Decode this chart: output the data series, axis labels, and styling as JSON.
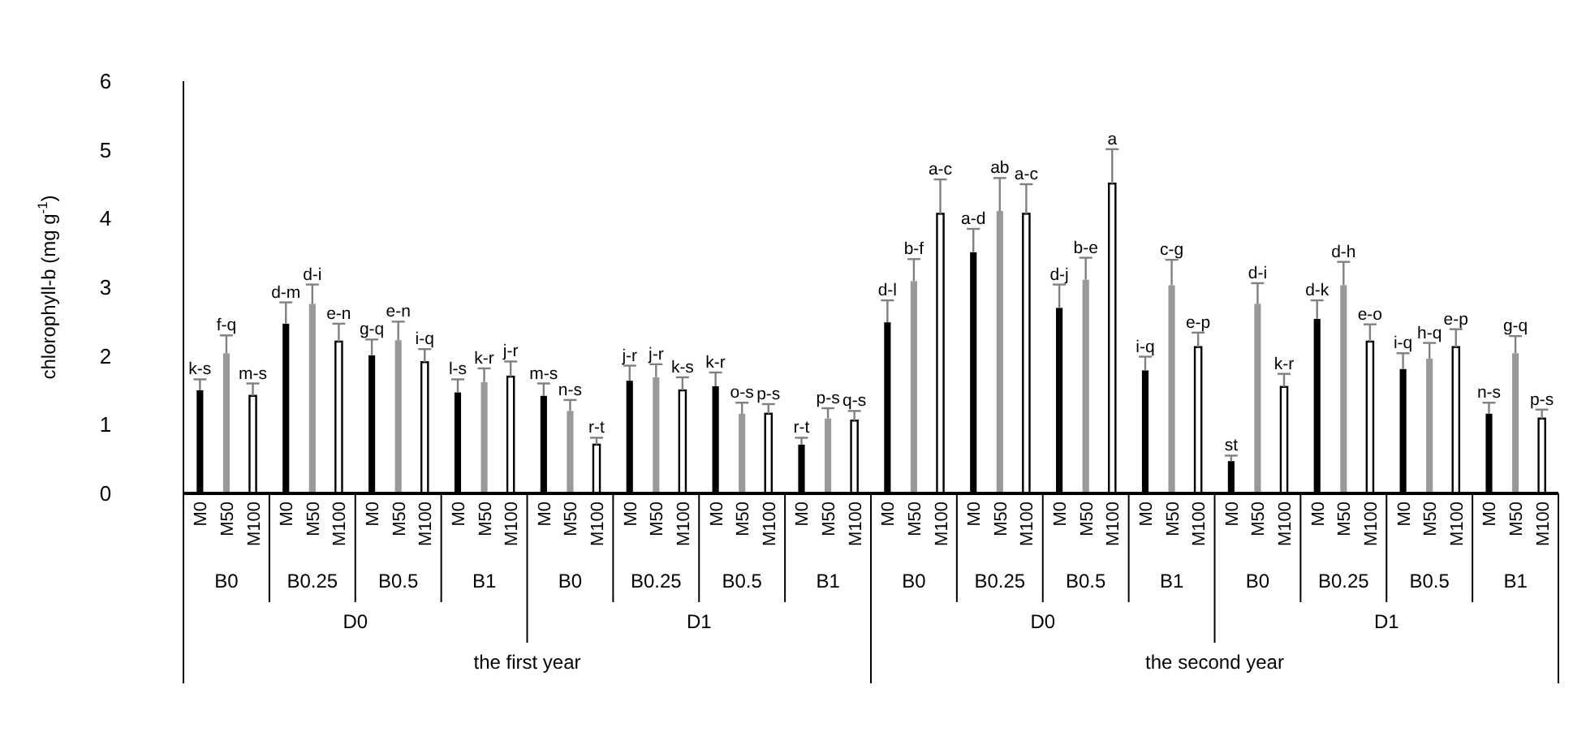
{
  "chart_data": {
    "type": "bar",
    "ylabel": "chlorophyll-b (mg g$^{-1}$)",
    "categories": [
      "B0",
      "B0.25",
      "B0.5",
      "B1",
      "B0",
      "B0.25",
      "B0.5",
      "B1",
      "B0",
      "B0.25",
      "B0.5",
      "B1",
      "B0",
      "B0.25",
      "B0.5",
      "B1"
    ],
    "series": [
      {
        "name": "M0",
        "color": "#000000",
        "values": [
          1.5,
          2.47,
          2.01,
          1.47,
          1.42,
          1.64,
          1.56,
          0.71,
          2.49,
          3.51,
          2.7,
          1.79,
          0.47,
          2.54,
          1.81,
          1.16
        ],
        "errors": [
          [
            1.5,
            1.66
          ],
          [
            2.47,
            2.78
          ],
          [
            2.01,
            2.24
          ],
          [
            1.47,
            1.66
          ],
          [
            1.42,
            1.6
          ],
          [
            1.64,
            1.86
          ],
          [
            1.56,
            1.76
          ],
          [
            0.71,
            0.81
          ],
          [
            2.49,
            2.81
          ],
          [
            3.51,
            3.85
          ],
          [
            2.7,
            3.04
          ],
          [
            1.79,
            1.99
          ],
          [
            0.47,
            0.55
          ],
          [
            2.54,
            2.81
          ],
          [
            1.81,
            2.04
          ],
          [
            1.16,
            1.32
          ]
        ],
        "value_labels": [
          "k-s",
          "d-m",
          "g-q",
          "l-s",
          "m-s",
          "j-r",
          "k-r",
          "r-t",
          "d-l",
          "a-d",
          "d-j",
          "i-q",
          "st",
          "d-k",
          "i-q",
          "n-s"
        ]
      },
      {
        "name": "M50",
        "color": "#999999",
        "values": [
          2.04,
          2.76,
          2.23,
          1.62,
          1.2,
          1.69,
          1.16,
          1.09,
          3.09,
          4.11,
          3.11,
          3.03,
          2.76,
          3.03,
          1.96,
          2.04
        ],
        "errors": [
          [
            2.04,
            2.3
          ],
          [
            2.76,
            3.04
          ],
          [
            2.23,
            2.5
          ],
          [
            1.62,
            1.82
          ],
          [
            1.2,
            1.36
          ],
          [
            1.69,
            1.88
          ],
          [
            1.16,
            1.32
          ],
          [
            1.09,
            1.24
          ],
          [
            3.09,
            3.41
          ],
          [
            4.11,
            4.59
          ],
          [
            3.11,
            3.43
          ],
          [
            3.03,
            3.4
          ],
          [
            2.76,
            3.06
          ],
          [
            3.03,
            3.37
          ],
          [
            1.96,
            2.19
          ],
          [
            2.04,
            2.29
          ]
        ],
        "value_labels": [
          "f-q",
          "d-i",
          "e-n",
          "k-r",
          "n-s",
          "j-r",
          "o-s",
          "p-s",
          "b-f",
          "ab",
          "b-e",
          "c-g",
          "d-i",
          "d-h",
          "h-q",
          "g-q"
        ]
      },
      {
        "name": "M100",
        "color": "#ffffff",
        "values": [
          1.42,
          2.21,
          1.91,
          1.7,
          0.71,
          1.5,
          1.16,
          1.06,
          4.07,
          4.07,
          4.51,
          2.13,
          1.55,
          2.21,
          2.13,
          1.09
        ],
        "errors": [
          [
            1.42,
            1.6
          ],
          [
            2.21,
            2.47
          ],
          [
            1.91,
            2.1
          ],
          [
            1.7,
            1.92
          ],
          [
            0.71,
            0.81
          ],
          [
            1.5,
            1.69
          ],
          [
            1.16,
            1.3
          ],
          [
            1.06,
            1.2
          ],
          [
            4.07,
            4.57
          ],
          [
            4.07,
            4.5
          ],
          [
            4.51,
            5.01
          ],
          [
            2.13,
            2.34
          ],
          [
            1.55,
            1.74
          ],
          [
            2.21,
            2.46
          ],
          [
            2.13,
            2.39
          ],
          [
            1.09,
            1.22
          ]
        ],
        "value_labels": [
          "m-s",
          "e-n",
          "i-q",
          "j-r",
          "r-t",
          "k-s",
          "p-s",
          "q-s",
          "a-c",
          "a-c",
          "a",
          "e-p",
          "k-r",
          "e-o",
          "e-p",
          "p-s"
        ]
      }
    ],
    "ylim": [
      0,
      6
    ],
    "yticks": [
      0,
      1,
      2,
      3,
      4,
      5,
      6
    ],
    "grid": false,
    "annotations": [
      "D0",
      "D1",
      "D0",
      "D1",
      "the first year",
      "the second year"
    ]
  }
}
